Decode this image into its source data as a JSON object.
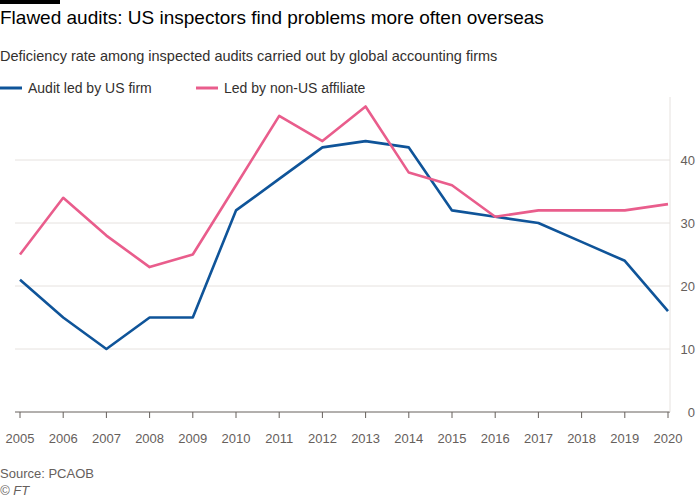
{
  "chart_data": {
    "type": "line",
    "title": "Flawed audits: US inspectors find problems more often overseas",
    "subtitle": "Deficiency rate among inspected audits carried out by global accounting firms",
    "source": "Source: PCAOB",
    "credit": "© FT",
    "x": [
      2005,
      2006,
      2007,
      2008,
      2009,
      2010,
      2011,
      2012,
      2013,
      2014,
      2015,
      2016,
      2017,
      2018,
      2019,
      2020
    ],
    "series": [
      {
        "name": "Audit led by US firm",
        "color": "#0f5499",
        "values": [
          21,
          15,
          10,
          15,
          15,
          32,
          37,
          42,
          43,
          42,
          32,
          31,
          30,
          27,
          24,
          16
        ]
      },
      {
        "name": "Led by non-US affiliate",
        "color": "#e95d8c",
        "values": [
          25,
          34,
          28,
          23,
          25,
          36,
          47,
          43,
          48.5,
          38,
          36,
          31,
          32,
          32,
          32,
          33
        ]
      }
    ],
    "xlim": [
      2005,
      2020
    ],
    "xticks": [
      2005,
      2006,
      2007,
      2008,
      2009,
      2010,
      2011,
      2012,
      2013,
      2014,
      2015,
      2016,
      2017,
      2018,
      2019,
      2020
    ],
    "ylim": [
      0,
      50
    ],
    "yticks": [
      0,
      10,
      20,
      30,
      40
    ],
    "grid": true,
    "legend": "top-left"
  }
}
